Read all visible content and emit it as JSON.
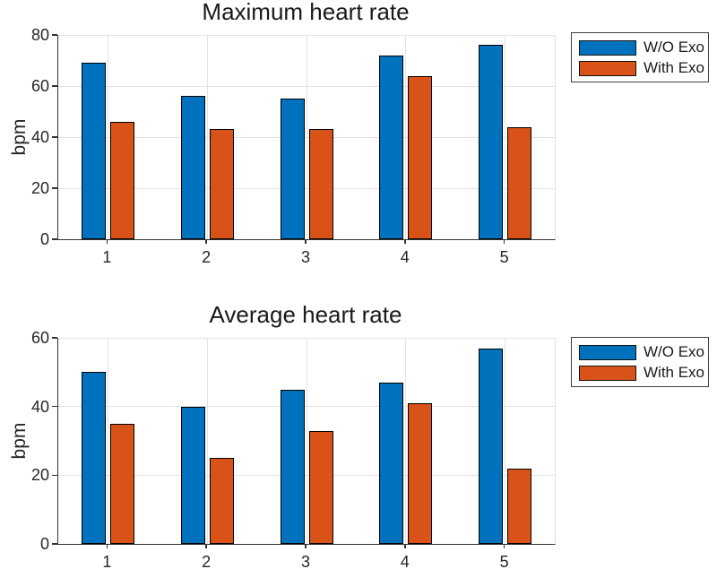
{
  "figure": {
    "background": "#ffffff",
    "accent_colors": {
      "series_blue": "#0072BD",
      "series_orange": "#D95319",
      "bar_edge": "#000000",
      "grid": "#e2e2e2",
      "axis": "#333333",
      "text": "#262626"
    }
  },
  "chart_data": [
    {
      "type": "bar",
      "title": "Maximum heart rate",
      "xlabel": "",
      "ylabel": "bpm",
      "categories": [
        "1",
        "2",
        "3",
        "4",
        "5"
      ],
      "series": [
        {
          "name": "W/O Exo",
          "color": "#0072BD",
          "values": [
            69,
            56,
            55,
            72,
            76
          ]
        },
        {
          "name": "With Exo",
          "color": "#D95319",
          "values": [
            46,
            43,
            43,
            64,
            44
          ]
        }
      ],
      "ylim": [
        0,
        80
      ],
      "yticks": [
        0,
        20,
        40,
        60,
        80
      ],
      "grid": true,
      "legend_position": "outside-top-right"
    },
    {
      "type": "bar",
      "title": "Average heart rate",
      "xlabel": "",
      "ylabel": "bpm",
      "categories": [
        "1",
        "2",
        "3",
        "4",
        "5"
      ],
      "series": [
        {
          "name": "W/O Exo",
          "color": "#0072BD",
          "values": [
            50,
            40,
            45,
            47,
            57
          ]
        },
        {
          "name": "With Exo",
          "color": "#D95319",
          "values": [
            35,
            25,
            33,
            41,
            22
          ]
        }
      ],
      "ylim": [
        0,
        60
      ],
      "yticks": [
        0,
        20,
        40,
        60
      ],
      "grid": true,
      "legend_position": "outside-top-right"
    }
  ]
}
